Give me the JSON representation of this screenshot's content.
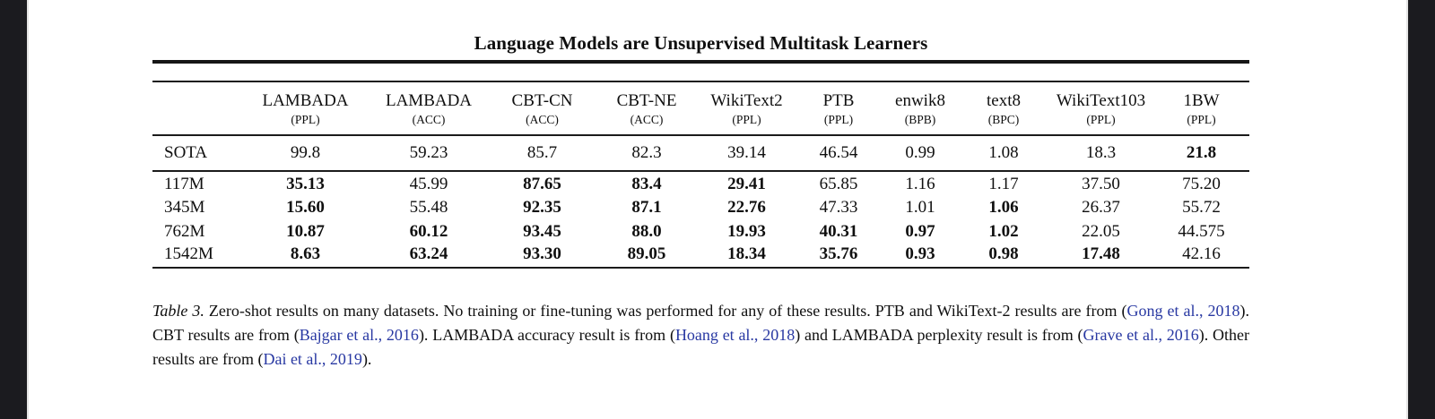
{
  "viewer": {
    "background_color": "#1b1b1f",
    "page_color": "#ffffff"
  },
  "paper": {
    "running_title": "Language Models are Unsupervised Multitask Learners"
  },
  "table": {
    "rule_color": "#1b1b1b",
    "columns": [
      {
        "name": "LAMBADA",
        "unit": "(PPL)"
      },
      {
        "name": "LAMBADA",
        "unit": "(ACC)"
      },
      {
        "name": "CBT-CN",
        "unit": "(ACC)"
      },
      {
        "name": "CBT-NE",
        "unit": "(ACC)"
      },
      {
        "name": "WikiText2",
        "unit": "(PPL)"
      },
      {
        "name": "PTB",
        "unit": "(PPL)"
      },
      {
        "name": "enwik8",
        "unit": "(BPB)"
      },
      {
        "name": "text8",
        "unit": "(BPC)"
      },
      {
        "name": "WikiText103",
        "unit": "(PPL)"
      },
      {
        "name": "1BW",
        "unit": "(PPL)"
      }
    ],
    "sota_row": {
      "label": "SOTA",
      "values": [
        "99.8",
        "59.23",
        "85.7",
        "82.3",
        "39.14",
        "46.54",
        "0.99",
        "1.08",
        "18.3",
        "21.8"
      ],
      "bold": [
        0,
        0,
        0,
        0,
        0,
        0,
        0,
        0,
        0,
        1
      ]
    },
    "model_rows": [
      {
        "label": "117M",
        "values": [
          "35.13",
          "45.99",
          "87.65",
          "83.4",
          "29.41",
          "65.85",
          "1.16",
          "1.17",
          "37.50",
          "75.20"
        ],
        "bold": [
          1,
          0,
          1,
          1,
          1,
          0,
          0,
          0,
          0,
          0
        ]
      },
      {
        "label": "345M",
        "values": [
          "15.60",
          "55.48",
          "92.35",
          "87.1",
          "22.76",
          "47.33",
          "1.01",
          "1.06",
          "26.37",
          "55.72"
        ],
        "bold": [
          1,
          0,
          1,
          1,
          1,
          0,
          0,
          1,
          0,
          0
        ]
      },
      {
        "label": "762M",
        "values": [
          "10.87",
          "60.12",
          "93.45",
          "88.0",
          "19.93",
          "40.31",
          "0.97",
          "1.02",
          "22.05",
          "44.575"
        ],
        "bold": [
          1,
          1,
          1,
          1,
          1,
          1,
          1,
          1,
          0,
          0
        ]
      },
      {
        "label": "1542M",
        "values": [
          "8.63",
          "63.24",
          "93.30",
          "89.05",
          "18.34",
          "35.76",
          "0.93",
          "0.98",
          "17.48",
          "42.16"
        ],
        "bold": [
          1,
          1,
          1,
          1,
          1,
          1,
          1,
          1,
          1,
          0
        ]
      }
    ]
  },
  "caption": {
    "citation_color": "#2838a2",
    "segments": [
      {
        "text": "Table 3.",
        "style": "italic"
      },
      {
        "text": " Zero-shot results on many datasets. No training or fine-tuning was performed for any of these results. PTB and WikiText-2 results are from (",
        "style": "normal"
      },
      {
        "text": "Gong et al., 2018",
        "style": "cite"
      },
      {
        "text": "). CBT results are from (",
        "style": "normal"
      },
      {
        "text": "Bajgar et al., 2016",
        "style": "cite"
      },
      {
        "text": "). LAMBADA accuracy result is from (",
        "style": "normal"
      },
      {
        "text": "Hoang et al., 2018",
        "style": "cite"
      },
      {
        "text": ") and LAMBADA perplexity result is from (",
        "style": "normal"
      },
      {
        "text": "Grave et al., 2016",
        "style": "cite"
      },
      {
        "text": "). Other results are from (",
        "style": "normal"
      },
      {
        "text": "Dai et al., 2019",
        "style": "cite"
      },
      {
        "text": ").",
        "style": "normal"
      }
    ]
  }
}
